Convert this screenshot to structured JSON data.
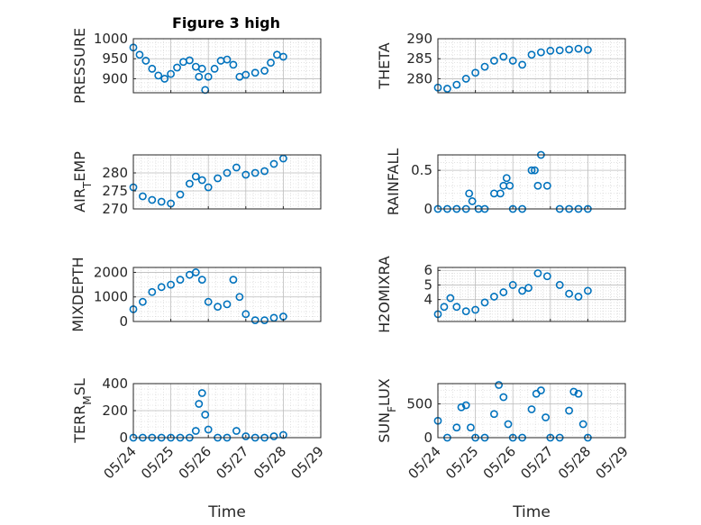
{
  "figure_title": "Figure 3 high",
  "x_label": "Time",
  "x_ticks": [
    "05/24",
    "05/25",
    "05/26",
    "05/27",
    "05/28",
    "05/29"
  ],
  "marker_color": "#0072BD",
  "chart_data": [
    {
      "type": "scatter",
      "title": "Figure 3 high",
      "ylabel": "PRESSURE",
      "xlabel": "",
      "xlim": [
        "05/24",
        "05/29"
      ],
      "ylim": [
        865,
        1000
      ],
      "yticks": [
        900,
        950,
        1000
      ],
      "grid": true,
      "show_xticks": false,
      "series": [
        {
          "x": [
            "2019-05-24T00:00",
            "2019-05-24T04:00",
            "2019-05-24T08:00",
            "2019-05-24T12:00",
            "2019-05-24T16:00",
            "2019-05-24T20:00",
            "2019-05-25T00:00",
            "2019-05-25T04:00",
            "2019-05-25T08:00",
            "2019-05-25T12:00",
            "2019-05-25T16:00",
            "2019-05-25T18:00",
            "2019-05-25T20:00",
            "2019-05-25T22:00",
            "2019-05-26T00:00",
            "2019-05-26T04:00",
            "2019-05-26T08:00",
            "2019-05-26T12:00",
            "2019-05-26T16:00",
            "2019-05-26T20:00",
            "2019-05-27T00:00",
            "2019-05-27T06:00",
            "2019-05-27T12:00",
            "2019-05-27T16:00",
            "2019-05-27T20:00",
            "2019-05-28T00:00"
          ],
          "y": [
            978,
            960,
            945,
            925,
            908,
            900,
            912,
            928,
            942,
            946,
            930,
            905,
            925,
            872,
            905,
            925,
            945,
            948,
            935,
            905,
            910,
            915,
            920,
            940,
            960,
            955
          ]
        }
      ]
    },
    {
      "type": "scatter",
      "title": "",
      "ylabel": "THETA",
      "xlabel": "",
      "xlim": [
        "05/24",
        "05/29"
      ],
      "ylim": [
        276.5,
        290
      ],
      "yticks": [
        280,
        285,
        290
      ],
      "grid": true,
      "show_xticks": false,
      "series": [
        {
          "x": [
            "2019-05-24T00:00",
            "2019-05-24T06:00",
            "2019-05-24T12:00",
            "2019-05-24T18:00",
            "2019-05-25T00:00",
            "2019-05-25T06:00",
            "2019-05-25T12:00",
            "2019-05-25T18:00",
            "2019-05-26T00:00",
            "2019-05-26T06:00",
            "2019-05-26T12:00",
            "2019-05-26T18:00",
            "2019-05-27T00:00",
            "2019-05-27T06:00",
            "2019-05-27T12:00",
            "2019-05-27T18:00",
            "2019-05-28T00:00"
          ],
          "y": [
            277.8,
            277.5,
            278.5,
            280.0,
            281.5,
            283.0,
            284.5,
            285.5,
            284.5,
            283.5,
            286.0,
            286.6,
            287.0,
            287.1,
            287.3,
            287.5,
            287.2
          ]
        }
      ]
    },
    {
      "type": "scatter",
      "title": "",
      "ylabel": "AIR_TEMP",
      "xlabel": "",
      "xlim": [
        "05/24",
        "05/29"
      ],
      "ylim": [
        270,
        285
      ],
      "yticks": [
        270,
        275,
        280
      ],
      "grid": true,
      "show_xticks": false,
      "series": [
        {
          "x": [
            "2019-05-24T00:00",
            "2019-05-24T06:00",
            "2019-05-24T12:00",
            "2019-05-24T18:00",
            "2019-05-25T00:00",
            "2019-05-25T06:00",
            "2019-05-25T12:00",
            "2019-05-25T16:00",
            "2019-05-25T20:00",
            "2019-05-26T00:00",
            "2019-05-26T06:00",
            "2019-05-26T12:00",
            "2019-05-26T18:00",
            "2019-05-27T00:00",
            "2019-05-27T06:00",
            "2019-05-27T12:00",
            "2019-05-27T18:00",
            "2019-05-28T00:00"
          ],
          "y": [
            276,
            273.5,
            272.5,
            272,
            271.5,
            274,
            277,
            279,
            278,
            276,
            278.5,
            280,
            281.5,
            279.5,
            280,
            280.5,
            282.5,
            284
          ]
        }
      ]
    },
    {
      "type": "scatter",
      "title": "",
      "ylabel": "RAINFALL",
      "xlabel": "",
      "xlim": [
        "05/24",
        "05/29"
      ],
      "ylim": [
        0,
        0.7
      ],
      "yticks": [
        0,
        0.5
      ],
      "ytick_labels": [
        "0",
        "0.5"
      ],
      "grid": true,
      "show_xticks": false,
      "series": [
        {
          "x": [
            "2019-05-24T00:00",
            "2019-05-24T06:00",
            "2019-05-24T12:00",
            "2019-05-24T18:00",
            "2019-05-24T20:00",
            "2019-05-24T22:00",
            "2019-05-25T02:00",
            "2019-05-25T06:00",
            "2019-05-25T12:00",
            "2019-05-25T16:00",
            "2019-05-25T18:00",
            "2019-05-25T20:00",
            "2019-05-25T22:00",
            "2019-05-26T00:00",
            "2019-05-26T06:00",
            "2019-05-26T12:00",
            "2019-05-26T14:00",
            "2019-05-26T16:00",
            "2019-05-26T18:00",
            "2019-05-26T22:00",
            "2019-05-27T06:00",
            "2019-05-27T12:00",
            "2019-05-27T18:00",
            "2019-05-28T00:00"
          ],
          "y": [
            0,
            0,
            0,
            0,
            0.2,
            0.1,
            0,
            0,
            0.2,
            0.2,
            0.3,
            0.4,
            0.3,
            0,
            0,
            0.5,
            0.5,
            0.3,
            0.7,
            0.3,
            0,
            0,
            0,
            0
          ]
        }
      ]
    },
    {
      "type": "scatter",
      "title": "",
      "ylabel": "MIXDEPTH",
      "xlabel": "",
      "xlim": [
        "05/24",
        "05/29"
      ],
      "ylim": [
        0,
        2200
      ],
      "yticks": [
        0,
        1000,
        2000
      ],
      "grid": true,
      "show_xticks": false,
      "series": [
        {
          "x": [
            "2019-05-24T00:00",
            "2019-05-24T06:00",
            "2019-05-24T12:00",
            "2019-05-24T18:00",
            "2019-05-25T00:00",
            "2019-05-25T06:00",
            "2019-05-25T12:00",
            "2019-05-25T16:00",
            "2019-05-25T20:00",
            "2019-05-26T00:00",
            "2019-05-26T06:00",
            "2019-05-26T12:00",
            "2019-05-26T16:00",
            "2019-05-26T20:00",
            "2019-05-27T00:00",
            "2019-05-27T06:00",
            "2019-05-27T12:00",
            "2019-05-27T18:00",
            "2019-05-28T00:00"
          ],
          "y": [
            500,
            800,
            1200,
            1400,
            1500,
            1700,
            1900,
            2000,
            1700,
            800,
            600,
            700,
            1700,
            1000,
            300,
            50,
            50,
            150,
            200
          ]
        }
      ]
    },
    {
      "type": "scatter",
      "title": "",
      "ylabel": "H2OMIXRA",
      "xlabel": "",
      "xlim": [
        "05/24",
        "05/29"
      ],
      "ylim": [
        2.5,
        6.2
      ],
      "yticks": [
        4,
        5,
        6
      ],
      "grid": true,
      "show_xticks": false,
      "series": [
        {
          "x": [
            "2019-05-24T00:00",
            "2019-05-24T04:00",
            "2019-05-24T08:00",
            "2019-05-24T12:00",
            "2019-05-24T18:00",
            "2019-05-25T00:00",
            "2019-05-25T06:00",
            "2019-05-25T12:00",
            "2019-05-25T18:00",
            "2019-05-26T00:00",
            "2019-05-26T06:00",
            "2019-05-26T10:00",
            "2019-05-26T16:00",
            "2019-05-26T22:00",
            "2019-05-27T06:00",
            "2019-05-27T12:00",
            "2019-05-27T18:00",
            "2019-05-28T00:00"
          ],
          "y": [
            3.0,
            3.5,
            4.1,
            3.5,
            3.2,
            3.3,
            3.8,
            4.2,
            4.5,
            5.0,
            4.6,
            4.8,
            5.8,
            5.6,
            5.0,
            4.4,
            4.2,
            4.6
          ]
        }
      ]
    },
    {
      "type": "scatter",
      "title": "",
      "ylabel": "TERR_MSL",
      "xlabel": "",
      "xlim": [
        "05/24",
        "05/29"
      ],
      "ylim": [
        0,
        400
      ],
      "yticks": [
        0,
        200,
        400
      ],
      "grid": true,
      "show_xticks": true,
      "series": [
        {
          "x": [
            "2019-05-24T00:00",
            "2019-05-24T06:00",
            "2019-05-24T12:00",
            "2019-05-24T18:00",
            "2019-05-25T00:00",
            "2019-05-25T06:00",
            "2019-05-25T12:00",
            "2019-05-25T16:00",
            "2019-05-25T18:00",
            "2019-05-25T20:00",
            "2019-05-25T22:00",
            "2019-05-26T00:00",
            "2019-05-26T06:00",
            "2019-05-26T12:00",
            "2019-05-26T18:00",
            "2019-05-27T00:00",
            "2019-05-27T06:00",
            "2019-05-27T12:00",
            "2019-05-27T18:00",
            "2019-05-28T00:00"
          ],
          "y": [
            0,
            0,
            0,
            0,
            0,
            0,
            0,
            50,
            250,
            330,
            170,
            60,
            0,
            0,
            50,
            10,
            0,
            0,
            10,
            20
          ]
        }
      ]
    },
    {
      "type": "scatter",
      "title": "",
      "ylabel": "SUN_FLUX",
      "xlabel": "",
      "xlim": [
        "05/24",
        "05/29"
      ],
      "ylim": [
        0,
        800
      ],
      "yticks": [
        0,
        500
      ],
      "grid": true,
      "show_xticks": true,
      "series": [
        {
          "x": [
            "2019-05-24T00:00",
            "2019-05-24T06:00",
            "2019-05-24T12:00",
            "2019-05-24T15:00",
            "2019-05-24T18:00",
            "2019-05-24T21:00",
            "2019-05-25T00:00",
            "2019-05-25T06:00",
            "2019-05-25T12:00",
            "2019-05-25T15:00",
            "2019-05-25T18:00",
            "2019-05-25T21:00",
            "2019-05-26T00:00",
            "2019-05-26T06:00",
            "2019-05-26T12:00",
            "2019-05-26T15:00",
            "2019-05-26T18:00",
            "2019-05-26T21:00",
            "2019-05-27T00:00",
            "2019-05-27T06:00",
            "2019-05-27T12:00",
            "2019-05-27T15:00",
            "2019-05-27T18:00",
            "2019-05-27T21:00",
            "2019-05-28T00:00"
          ],
          "y": [
            250,
            0,
            150,
            450,
            480,
            150,
            0,
            0,
            350,
            780,
            600,
            200,
            0,
            0,
            420,
            650,
            700,
            300,
            0,
            0,
            400,
            680,
            650,
            200,
            0
          ]
        }
      ]
    }
  ]
}
